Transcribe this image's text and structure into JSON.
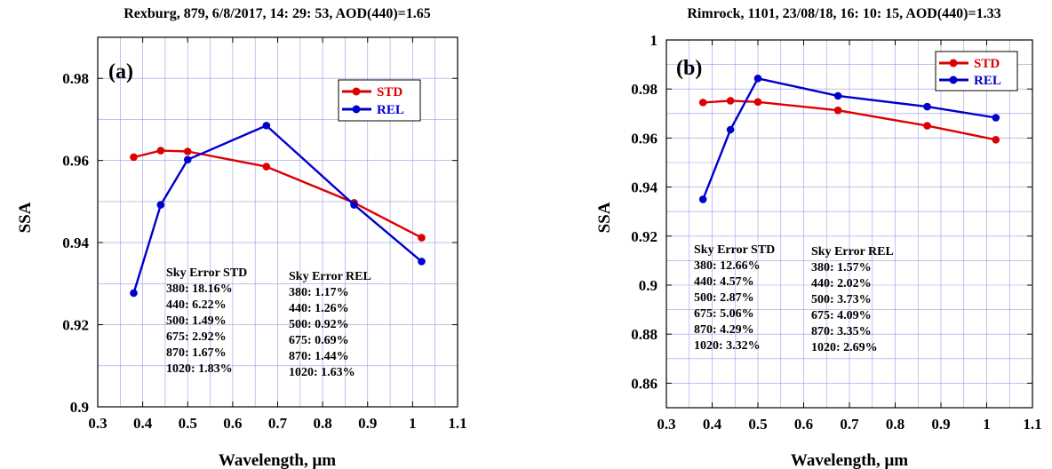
{
  "chart_data": [
    {
      "type": "line",
      "panel_label": "(a)",
      "title": "Rexburg, 879, 6/8/2017, 14: 29: 53, AOD(440)=1.65",
      "xlabel": "Wavelength, μm",
      "ylabel": "SSA",
      "xlim": [
        0.3,
        1.1
      ],
      "ylim": [
        0.9,
        0.99
      ],
      "x_ticks": [
        0.3,
        0.4,
        0.5,
        0.6,
        0.7,
        0.8,
        0.9,
        1.0,
        1.1
      ],
      "x_tick_labels": [
        "0.3",
        "0.4",
        "0.5",
        "0.6",
        "0.7",
        "0.8",
        "0.9",
        "1",
        "1.1"
      ],
      "y_ticks": [
        0.9,
        0.92,
        0.94,
        0.96,
        0.98
      ],
      "y_tick_labels": [
        "0.9",
        "0.92",
        "0.94",
        "0.96",
        "0.98"
      ],
      "grid": true,
      "legend_position": "top-right",
      "x": [
        0.38,
        0.44,
        0.5,
        0.675,
        0.87,
        1.02
      ],
      "series": [
        {
          "name": "STD",
          "color": "#dd0000",
          "values": [
            0.9608,
            0.9624,
            0.9622,
            0.9585,
            0.9497,
            0.9412
          ]
        },
        {
          "name": "REL",
          "color": "#0000cc",
          "values": [
            0.9277,
            0.9492,
            0.9602,
            0.9685,
            0.9492,
            0.9354
          ]
        }
      ],
      "annotations": [
        {
          "title": "Sky Error STD",
          "lines": [
            "380: 18.16%",
            "440: 6.22%",
            "500: 1.49%",
            "675: 2.92%",
            "870: 1.67%",
            "1020: 1.83%"
          ]
        },
        {
          "title": "Sky Error REL",
          "lines": [
            "380: 1.17%",
            "440: 1.26%",
            "500: 0.92%",
            "675: 0.69%",
            "870: 1.44%",
            "1020: 1.63%"
          ]
        }
      ]
    },
    {
      "type": "line",
      "panel_label": "(b)",
      "title": "Rimrock, 1101, 23/08/18, 16: 10: 15, AOD(440)=1.33",
      "xlabel": "Wavelength, μm",
      "ylabel": "SSA",
      "xlim": [
        0.3,
        1.1
      ],
      "ylim": [
        0.85,
        1.0
      ],
      "x_ticks": [
        0.3,
        0.4,
        0.5,
        0.6,
        0.7,
        0.8,
        0.9,
        1.0,
        1.1
      ],
      "x_tick_labels": [
        "0.3",
        "0.4",
        "0.5",
        "0.6",
        "0.7",
        "0.8",
        "0.9",
        "1",
        "1.1"
      ],
      "y_ticks": [
        0.86,
        0.88,
        0.9,
        0.92,
        0.94,
        0.96,
        0.98,
        1.0
      ],
      "y_tick_labels": [
        "0.86",
        "0.88",
        "0.9",
        "0.92",
        "0.94",
        "0.96",
        "0.98",
        "1"
      ],
      "grid": true,
      "legend_position": "top-right",
      "x": [
        0.38,
        0.44,
        0.5,
        0.675,
        0.87,
        1.02
      ],
      "series": [
        {
          "name": "STD",
          "color": "#dd0000",
          "values": [
            0.9745,
            0.9752,
            0.9747,
            0.9713,
            0.965,
            0.9593
          ]
        },
        {
          "name": "REL",
          "color": "#0000cc",
          "values": [
            0.935,
            0.9634,
            0.9843,
            0.9772,
            0.9728,
            0.9683
          ]
        }
      ],
      "annotations": [
        {
          "title": "Sky Error STD",
          "lines": [
            "380: 12.66%",
            "440: 4.57%",
            "500: 2.87%",
            "675: 5.06%",
            "870: 4.29%",
            "1020: 3.32%"
          ]
        },
        {
          "title": "Sky Error REL",
          "lines": [
            "380: 1.57%",
            "440: 2.02%",
            "500: 3.73%",
            "675: 4.09%",
            "870: 3.35%",
            "1020: 2.69%"
          ]
        }
      ]
    }
  ]
}
